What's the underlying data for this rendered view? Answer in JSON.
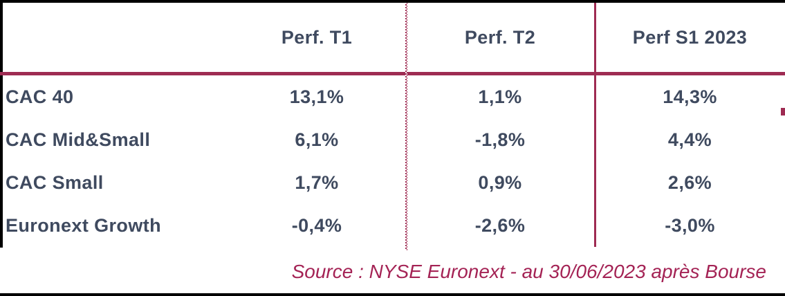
{
  "chart_data": {
    "type": "table",
    "title": "",
    "columns": [
      "",
      "Perf. T1",
      "Perf. T2",
      "Perf S1 2023"
    ],
    "rows": [
      {
        "label": "CAC 40",
        "values": [
          "13,1%",
          "1,1%",
          "14,3%"
        ]
      },
      {
        "label": "CAC Mid&Small",
        "values": [
          "6,1%",
          "-1,8%",
          "4,4%"
        ]
      },
      {
        "label": "CAC Small",
        "values": [
          "1,7%",
          "0,9%",
          "2,6%"
        ]
      },
      {
        "label": "Euronext Growth",
        "values": [
          "-0,4%",
          "-2,6%",
          "-3,0%"
        ]
      }
    ],
    "source_note": "Source : NYSE Euronext - au 30/06/2023 après Bourse",
    "layout": {
      "grid": "no horizontal gridlines between data rows; dotted separator after first value column, solid separator before last column",
      "header_rule_color": "#9E2B52",
      "outer_border_color": "#000000"
    }
  },
  "colors": {
    "text_navy": "#3F4A5F",
    "accent_maroon": "#9E2B52",
    "source_text": "#A42355",
    "frame_black": "#000000",
    "background": "#FFFFFF"
  }
}
